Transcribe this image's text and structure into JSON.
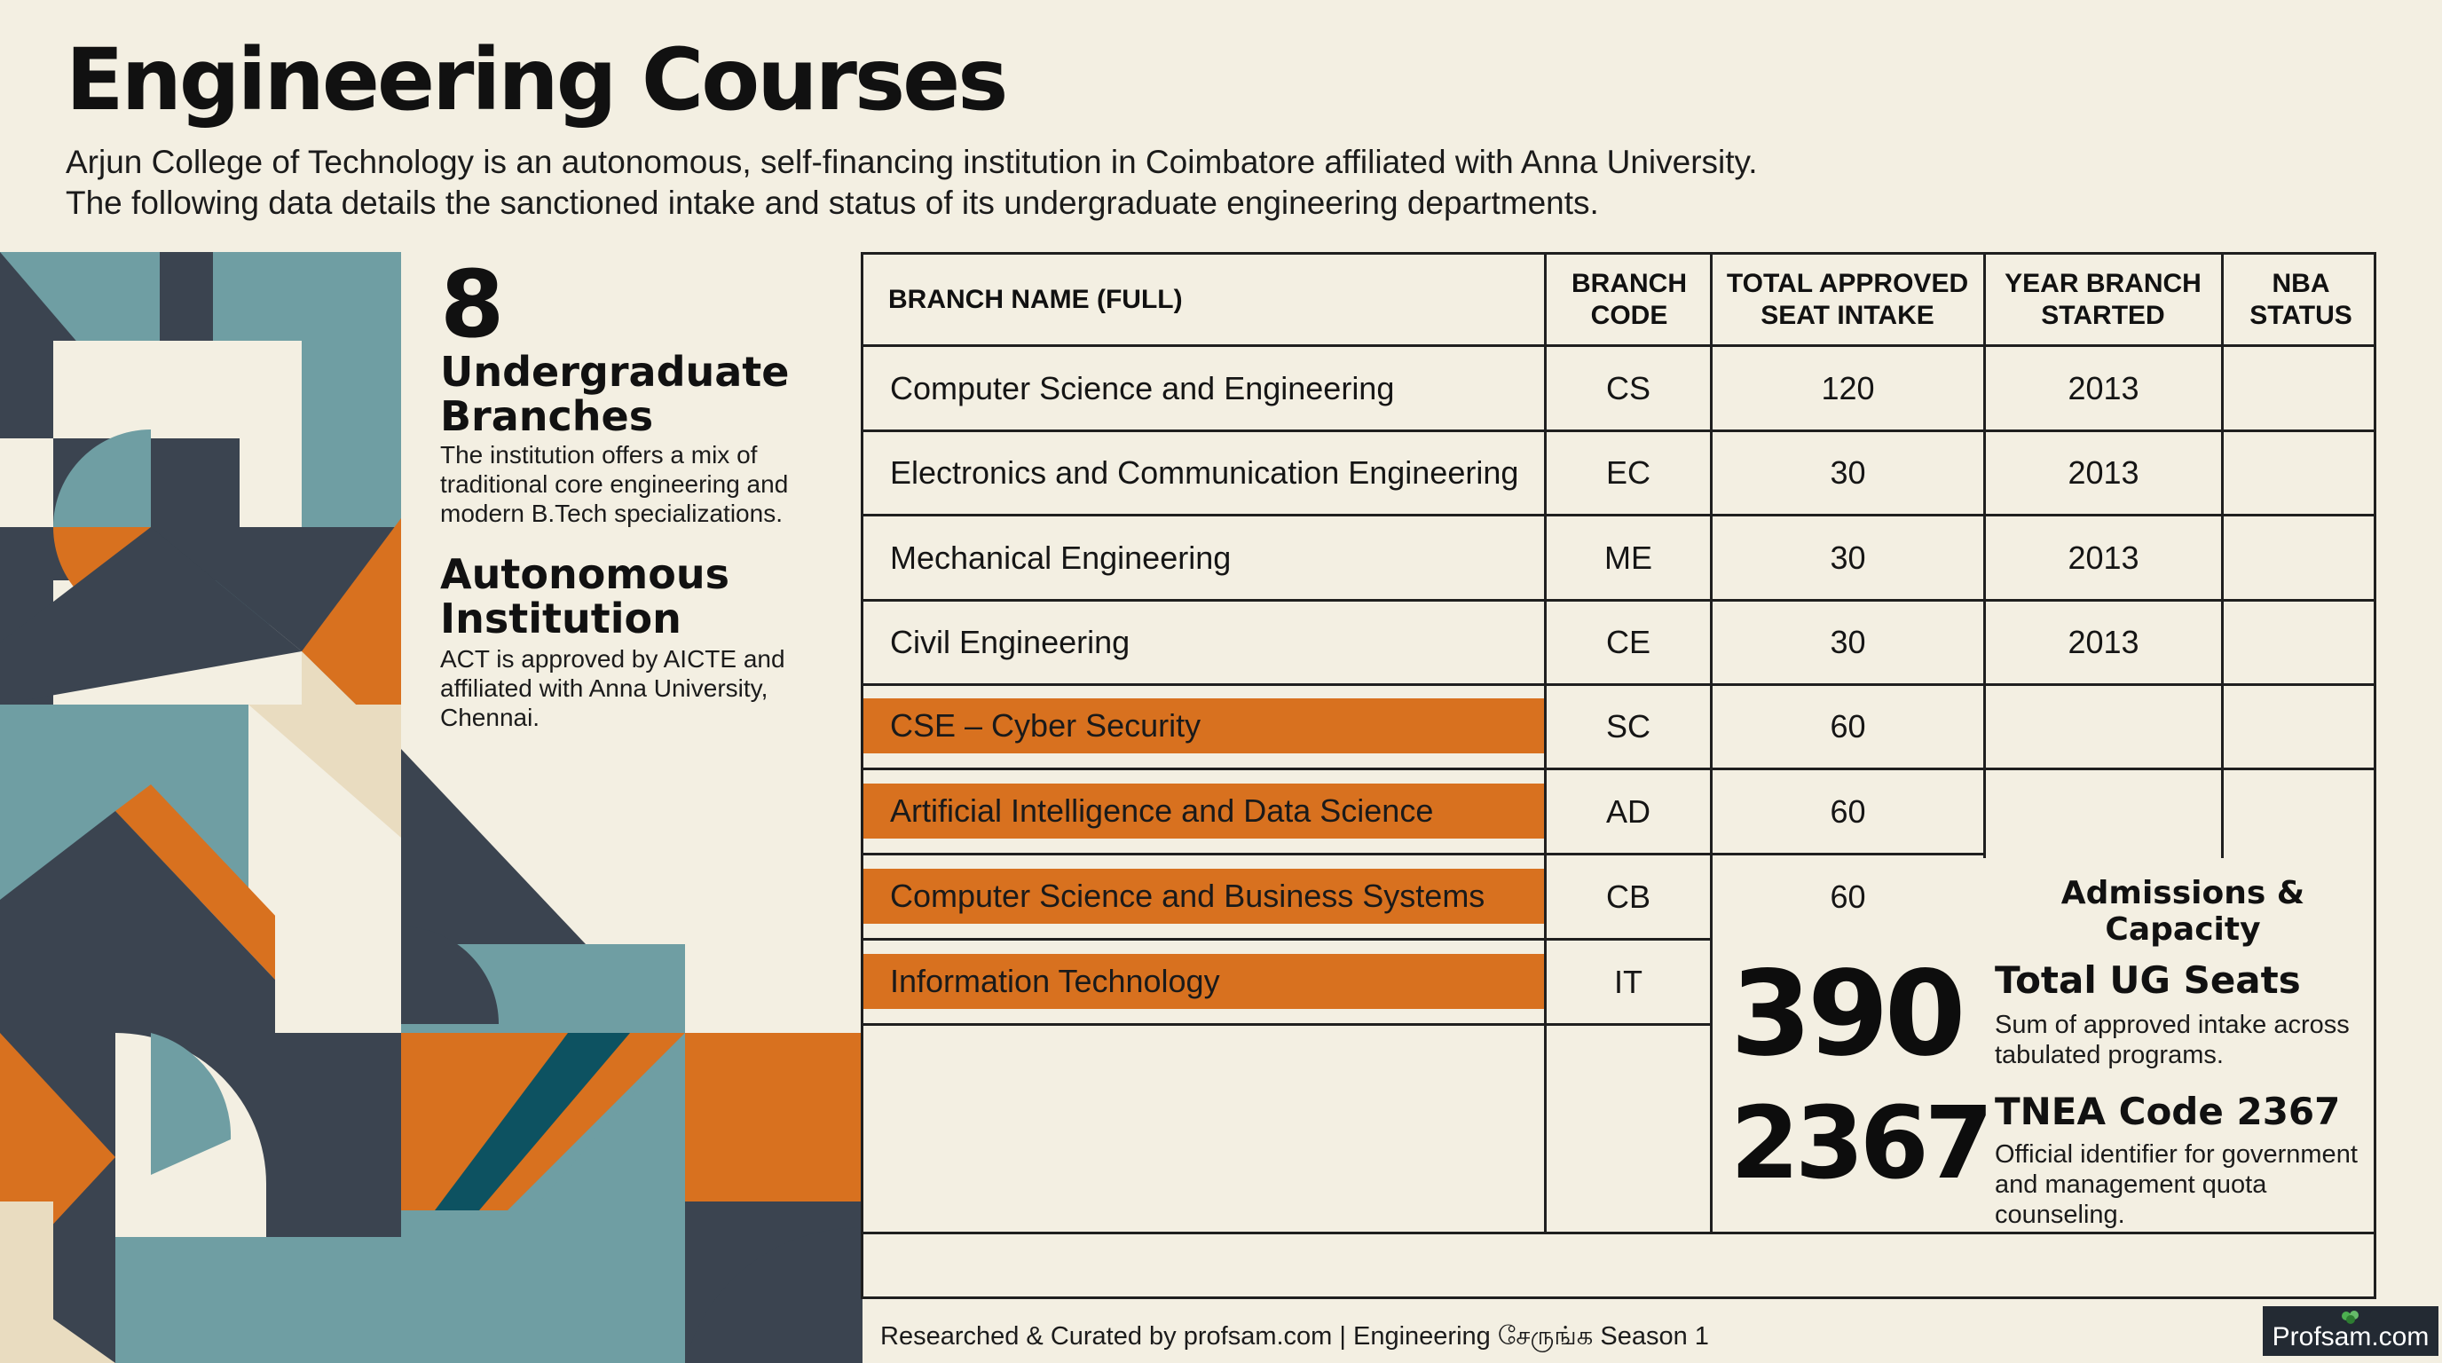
{
  "header": {
    "title": "Engineering Courses",
    "intro_line1": "Arjun College of Technology is an autonomous, self-financing institution in Coimbatore affiliated with Anna University.",
    "intro_line2": "The following data details the sanctioned intake and status of its undergraduate engineering departments."
  },
  "stats": {
    "branches_number": "8",
    "branches_title": "Undergraduate Branches",
    "branches_desc": "The institution offers a mix of traditional core engineering and modern B.Tech specializations.",
    "autonomous_title": "Autonomous Institution",
    "autonomous_desc": "ACT is approved by AICTE and affiliated with Anna University, Chennai."
  },
  "table": {
    "headers": {
      "name": "BRANCH NAME (FULL)",
      "code": "BRANCH CODE",
      "intake": "TOTAL APPROVED SEAT INTAKE",
      "year": "YEAR BRANCH STARTED",
      "nba": "NBA STATUS"
    },
    "rows": [
      {
        "name": "Computer Science and Engineering",
        "code": "CS",
        "intake": "120",
        "year": "2013",
        "nba": "",
        "highlight": false
      },
      {
        "name": "Electronics and Communication Engineering",
        "code": "EC",
        "intake": "30",
        "year": "2013",
        "nba": "",
        "highlight": false
      },
      {
        "name": "Mechanical Engineering",
        "code": "ME",
        "intake": "30",
        "year": "2013",
        "nba": "",
        "highlight": false
      },
      {
        "name": "Civil Engineering",
        "code": "CE",
        "intake": "30",
        "year": "2013",
        "nba": "",
        "highlight": false
      },
      {
        "name": "CSE – Cyber Security",
        "code": "SC",
        "intake": "60",
        "year": "",
        "nba": "",
        "highlight": true
      },
      {
        "name": "Artificial Intelligence and Data Science",
        "code": "AD",
        "intake": "60",
        "year": "",
        "nba": "",
        "highlight": true
      },
      {
        "name": "Computer Science and Business Systems",
        "code": "CB",
        "intake": "60",
        "year": "",
        "nba": "",
        "highlight": true
      },
      {
        "name": "Information Technology",
        "code": "IT",
        "intake": "",
        "year": "",
        "nba": "",
        "highlight": true
      }
    ]
  },
  "summary": {
    "title": "Admissions & Capacity",
    "seats_number": "390",
    "seats_title": "Total UG Seats",
    "seats_desc": "Sum of approved intake across tabulated programs.",
    "tnea_number": "2367",
    "tnea_title": "TNEA Code 2367",
    "tnea_desc": "Official identifier for government and management quota counseling."
  },
  "footer": {
    "credit": "Researched & Curated by profsam.com | Engineering சேருங்க Season 1",
    "badge": "Profsam.com"
  },
  "colors": {
    "background": "#f3efe2",
    "highlight": "#d8711f",
    "slate": "#3b4450",
    "teal": "#6f9ea3",
    "cream": "#e9dcc0",
    "deep_teal": "#0d5261"
  }
}
